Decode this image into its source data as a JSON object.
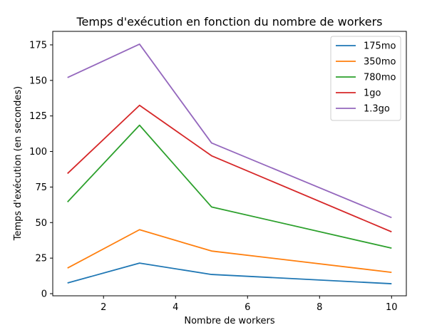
{
  "chart_data": {
    "type": "line",
    "title": "Temps d'exécution en fonction du nombre de workers",
    "xlabel": "Nombre de workers",
    "ylabel": "Temps d'exécution (en secondes)",
    "xlim": [
      0.59,
      10.41
    ],
    "ylim": [
      -1.5,
      184.5
    ],
    "xticks": [
      2,
      4,
      6,
      8,
      10
    ],
    "yticks": [
      0,
      25,
      50,
      75,
      100,
      125,
      150,
      175
    ],
    "x": [
      1,
      3,
      5,
      10
    ],
    "grid": false,
    "legend_position": "top-right",
    "series": [
      {
        "name": "175mo",
        "color": "#1f77b4",
        "values": [
          7.5,
          21.5,
          13.5,
          7
        ]
      },
      {
        "name": "350mo",
        "color": "#ff7f0e",
        "values": [
          18,
          45,
          30,
          15
        ]
      },
      {
        "name": "780mo",
        "color": "#2ca02c",
        "values": [
          64.5,
          118.5,
          61,
          32
        ]
      },
      {
        "name": "1go",
        "color": "#d62728",
        "values": [
          84.5,
          132.5,
          97,
          43.5
        ]
      },
      {
        "name": "1.3go",
        "color": "#9467bd",
        "values": [
          152,
          175.5,
          106,
          53.5
        ]
      }
    ]
  }
}
